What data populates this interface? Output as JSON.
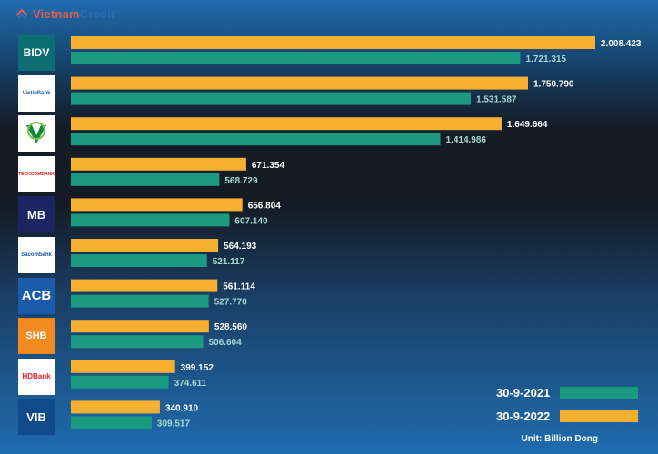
{
  "brand": {
    "part1": "Vietnam",
    "part2": "Credit"
  },
  "colors": {
    "series_2021": "#1b9a81",
    "series_2022": "#f6b031",
    "label_2021": "#a7d8cf",
    "label_2022": "#ffffff"
  },
  "legend": [
    {
      "label": "30-9-2021",
      "color": "#1b9a81"
    },
    {
      "label": "30-9-2022",
      "color": "#f6b031"
    }
  ],
  "unit_note": "Unit: Billion Dong",
  "banks": [
    {
      "logo": "BIDV",
      "icon": "bidv-logo"
    },
    {
      "logo": "VietinBank",
      "icon": "vietinbank-logo"
    },
    {
      "logo": "",
      "icon": "vietcombank-logo"
    },
    {
      "logo": "TECHCOMBANK",
      "icon": "techcombank-logo"
    },
    {
      "logo": "MB",
      "icon": "mb-bank-logo"
    },
    {
      "logo": "Sacombank",
      "icon": "sacombank-logo"
    },
    {
      "logo": "ACB",
      "icon": "acb-logo"
    },
    {
      "logo": "SHB",
      "icon": "shb-logo"
    },
    {
      "logo": "HDBank",
      "icon": "hdbank-logo"
    },
    {
      "logo": "VIB",
      "icon": "vib-logo"
    }
  ],
  "chart_data": {
    "type": "bar",
    "orientation": "horizontal",
    "categories": [
      "BIDV",
      "VietinBank",
      "Vietcombank",
      "Techcombank",
      "MB",
      "Sacombank",
      "ACB",
      "SHB",
      "HDBank",
      "VIB"
    ],
    "series": [
      {
        "name": "30-9-2022",
        "values": [
          2008423,
          1750790,
          1649664,
          671354,
          656804,
          564193,
          561114,
          528560,
          399152,
          340910
        ],
        "labels": [
          "2.008.423",
          "1.750.790",
          "1.649.664",
          "671.354",
          "656.804",
          "564.193",
          "561.114",
          "528.560",
          "399.152",
          "340.910"
        ]
      },
      {
        "name": "30-9-2021",
        "values": [
          1721315,
          1531587,
          1414986,
          568729,
          607140,
          521117,
          527770,
          506604,
          374611,
          309517
        ],
        "labels": [
          "1.721.315",
          "1.531.587",
          "1.414.986",
          "568.729",
          "607.140",
          "521.117",
          "527.770",
          "506.604",
          "374.611",
          "309.517"
        ]
      }
    ],
    "xlim": [
      0,
      2008423
    ],
    "grid": false,
    "legend_position": "bottom-right"
  }
}
